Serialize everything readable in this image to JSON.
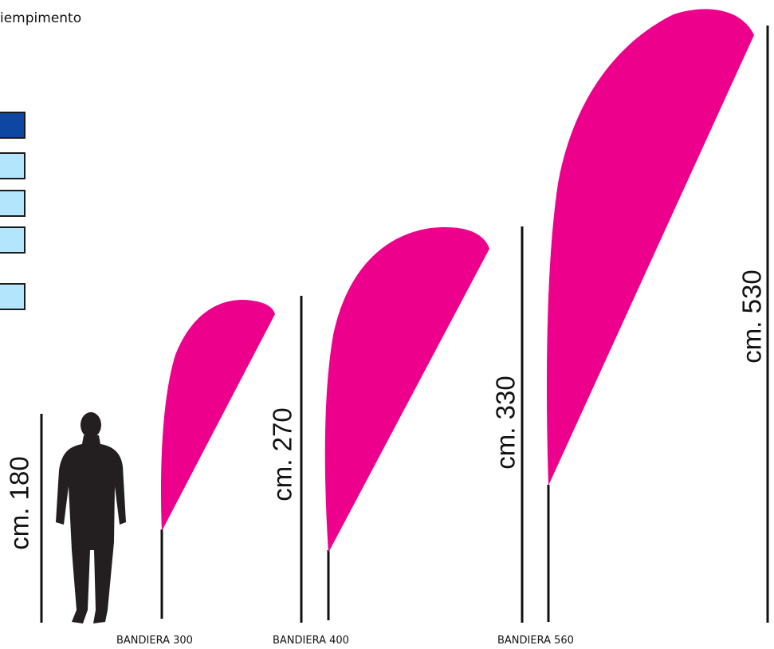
{
  "top_caption": "iempimento",
  "colors": {
    "flag": "#ec008c",
    "silhouette": "#231f20",
    "line": "#111111",
    "swatch_dark": "#0d47a1",
    "swatch_light": "#b3e5fc"
  },
  "swatches": [
    "dark-blue",
    "light-blue",
    "light-blue",
    "light-blue",
    "light-blue"
  ],
  "heights": {
    "person": "cm. 180",
    "flag_300": "cm. 270",
    "flag_400": "cm. 330",
    "flag_560": "cm. 530"
  },
  "flags": {
    "flag_300": "BANDIERA 300",
    "flag_400": "BANDIERA 400",
    "flag_560": "BANDIERA 560"
  },
  "icons": {
    "person": "person-silhouette-icon"
  }
}
